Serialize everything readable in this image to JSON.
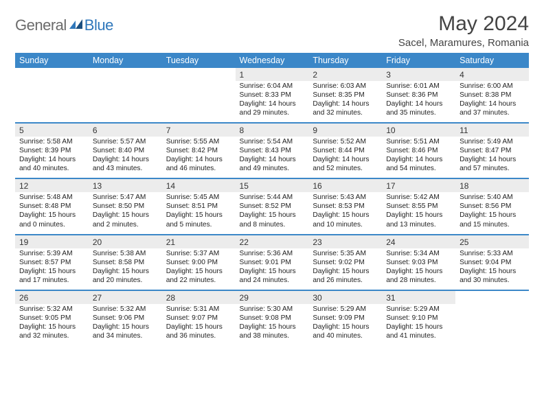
{
  "logo": {
    "text1": "General",
    "text2": "Blue"
  },
  "title": "May 2024",
  "location": "Sacel, Maramures, Romania",
  "dow": [
    "Sunday",
    "Monday",
    "Tuesday",
    "Wednesday",
    "Thursday",
    "Friday",
    "Saturday"
  ],
  "colors": {
    "header_bg": "#3b87c8",
    "daynum_bg": "#ececec",
    "sep": "#3b87c8",
    "logo_gray": "#6b6b6b",
    "logo_blue": "#2f77bb"
  },
  "weeks": [
    [
      null,
      null,
      null,
      {
        "n": "1",
        "sr": "6:04 AM",
        "ss": "8:33 PM",
        "dl": "14 hours and 29 minutes."
      },
      {
        "n": "2",
        "sr": "6:03 AM",
        "ss": "8:35 PM",
        "dl": "14 hours and 32 minutes."
      },
      {
        "n": "3",
        "sr": "6:01 AM",
        "ss": "8:36 PM",
        "dl": "14 hours and 35 minutes."
      },
      {
        "n": "4",
        "sr": "6:00 AM",
        "ss": "8:38 PM",
        "dl": "14 hours and 37 minutes."
      }
    ],
    [
      {
        "n": "5",
        "sr": "5:58 AM",
        "ss": "8:39 PM",
        "dl": "14 hours and 40 minutes."
      },
      {
        "n": "6",
        "sr": "5:57 AM",
        "ss": "8:40 PM",
        "dl": "14 hours and 43 minutes."
      },
      {
        "n": "7",
        "sr": "5:55 AM",
        "ss": "8:42 PM",
        "dl": "14 hours and 46 minutes."
      },
      {
        "n": "8",
        "sr": "5:54 AM",
        "ss": "8:43 PM",
        "dl": "14 hours and 49 minutes."
      },
      {
        "n": "9",
        "sr": "5:52 AM",
        "ss": "8:44 PM",
        "dl": "14 hours and 52 minutes."
      },
      {
        "n": "10",
        "sr": "5:51 AM",
        "ss": "8:46 PM",
        "dl": "14 hours and 54 minutes."
      },
      {
        "n": "11",
        "sr": "5:49 AM",
        "ss": "8:47 PM",
        "dl": "14 hours and 57 minutes."
      }
    ],
    [
      {
        "n": "12",
        "sr": "5:48 AM",
        "ss": "8:48 PM",
        "dl": "15 hours and 0 minutes."
      },
      {
        "n": "13",
        "sr": "5:47 AM",
        "ss": "8:50 PM",
        "dl": "15 hours and 2 minutes."
      },
      {
        "n": "14",
        "sr": "5:45 AM",
        "ss": "8:51 PM",
        "dl": "15 hours and 5 minutes."
      },
      {
        "n": "15",
        "sr": "5:44 AM",
        "ss": "8:52 PM",
        "dl": "15 hours and 8 minutes."
      },
      {
        "n": "16",
        "sr": "5:43 AM",
        "ss": "8:53 PM",
        "dl": "15 hours and 10 minutes."
      },
      {
        "n": "17",
        "sr": "5:42 AM",
        "ss": "8:55 PM",
        "dl": "15 hours and 13 minutes."
      },
      {
        "n": "18",
        "sr": "5:40 AM",
        "ss": "8:56 PM",
        "dl": "15 hours and 15 minutes."
      }
    ],
    [
      {
        "n": "19",
        "sr": "5:39 AM",
        "ss": "8:57 PM",
        "dl": "15 hours and 17 minutes."
      },
      {
        "n": "20",
        "sr": "5:38 AM",
        "ss": "8:58 PM",
        "dl": "15 hours and 20 minutes."
      },
      {
        "n": "21",
        "sr": "5:37 AM",
        "ss": "9:00 PM",
        "dl": "15 hours and 22 minutes."
      },
      {
        "n": "22",
        "sr": "5:36 AM",
        "ss": "9:01 PM",
        "dl": "15 hours and 24 minutes."
      },
      {
        "n": "23",
        "sr": "5:35 AM",
        "ss": "9:02 PM",
        "dl": "15 hours and 26 minutes."
      },
      {
        "n": "24",
        "sr": "5:34 AM",
        "ss": "9:03 PM",
        "dl": "15 hours and 28 minutes."
      },
      {
        "n": "25",
        "sr": "5:33 AM",
        "ss": "9:04 PM",
        "dl": "15 hours and 30 minutes."
      }
    ],
    [
      {
        "n": "26",
        "sr": "5:32 AM",
        "ss": "9:05 PM",
        "dl": "15 hours and 32 minutes."
      },
      {
        "n": "27",
        "sr": "5:32 AM",
        "ss": "9:06 PM",
        "dl": "15 hours and 34 minutes."
      },
      {
        "n": "28",
        "sr": "5:31 AM",
        "ss": "9:07 PM",
        "dl": "15 hours and 36 minutes."
      },
      {
        "n": "29",
        "sr": "5:30 AM",
        "ss": "9:08 PM",
        "dl": "15 hours and 38 minutes."
      },
      {
        "n": "30",
        "sr": "5:29 AM",
        "ss": "9:09 PM",
        "dl": "15 hours and 40 minutes."
      },
      {
        "n": "31",
        "sr": "5:29 AM",
        "ss": "9:10 PM",
        "dl": "15 hours and 41 minutes."
      },
      null
    ]
  ],
  "labels": {
    "sunrise": "Sunrise:",
    "sunset": "Sunset:",
    "daylight": "Daylight:"
  }
}
